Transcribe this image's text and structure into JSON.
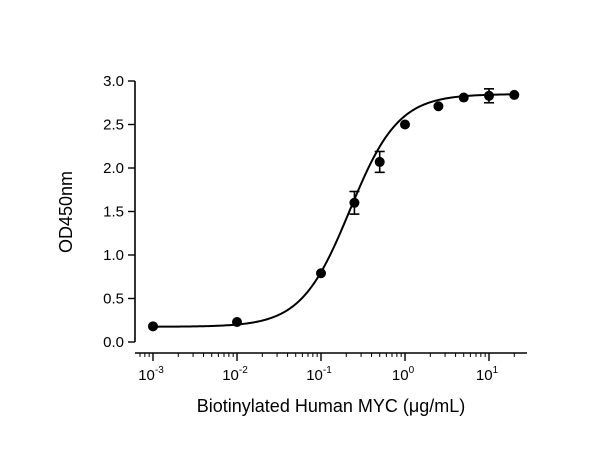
{
  "chart_data": {
    "type": "scatter",
    "xlabel": "Biotinylated Human MYC (μg/mL)",
    "ylabel": "OD450nm",
    "xscale": "log",
    "xlim": [
      0.0005,
      25
    ],
    "ylim": [
      0,
      3.0
    ],
    "grid": false,
    "y_ticks": [
      "0.0",
      "0.5",
      "1.0",
      "1.5",
      "2.0",
      "2.5",
      "3.0"
    ],
    "x_ticks": [
      {
        "base": "10",
        "exp": "-3",
        "value": 0.001
      },
      {
        "base": "10",
        "exp": "-2",
        "value": 0.01
      },
      {
        "base": "10",
        "exp": "-1",
        "value": 0.1
      },
      {
        "base": "10",
        "exp": "0",
        "value": 1
      },
      {
        "base": "10",
        "exp": "1",
        "value": 10
      }
    ],
    "series": [
      {
        "points": [
          {
            "x": 0.001,
            "y": 0.18,
            "err": 0.01
          },
          {
            "x": 0.01,
            "y": 0.23,
            "err": 0.01
          },
          {
            "x": 0.1,
            "y": 0.79,
            "err": 0.02
          },
          {
            "x": 0.25,
            "y": 1.6,
            "err": 0.13
          },
          {
            "x": 0.5,
            "y": 2.07,
            "err": 0.12
          },
          {
            "x": 1,
            "y": 2.5,
            "err": 0.02
          },
          {
            "x": 2.5,
            "y": 2.71,
            "err": 0.02
          },
          {
            "x": 5,
            "y": 2.81,
            "err": 0.02
          },
          {
            "x": 10,
            "y": 2.83,
            "err": 0.08
          },
          {
            "x": 20,
            "y": 2.84,
            "err": 0.02
          }
        ],
        "fit": {
          "model": "4PL",
          "bottom": 0.175,
          "top": 2.85,
          "ec50": 0.22,
          "hill": 1.5
        }
      }
    ]
  }
}
